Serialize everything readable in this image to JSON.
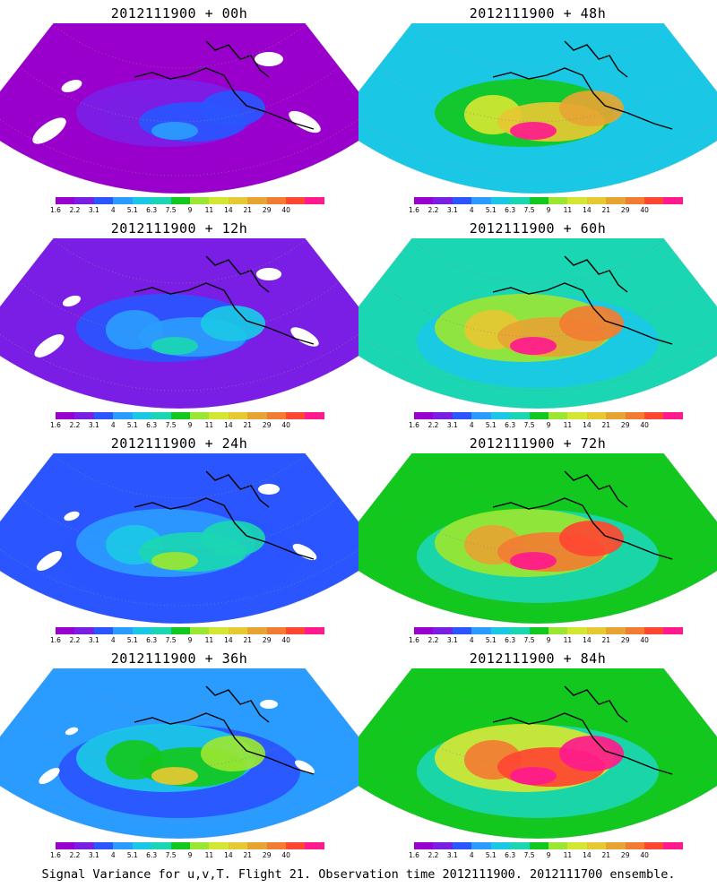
{
  "panels": [
    {
      "title": "2012111900 + 00h",
      "intensity": 0.0
    },
    {
      "title": "2012111900 + 48h",
      "intensity": 0.62
    },
    {
      "title": "2012111900 + 12h",
      "intensity": 0.12
    },
    {
      "title": "2012111900 + 60h",
      "intensity": 0.7
    },
    {
      "title": "2012111900 + 24h",
      "intensity": 0.25
    },
    {
      "title": "2012111900 + 72h",
      "intensity": 0.78
    },
    {
      "title": "2012111900 + 36h",
      "intensity": 0.38
    },
    {
      "title": "2012111900 + 84h",
      "intensity": 0.85
    }
  ],
  "colorbar": {
    "colors": [
      "#9900cc",
      "#7a1ee6",
      "#2a55ff",
      "#2b9cff",
      "#1ac8e6",
      "#1ad6b3",
      "#12c81e",
      "#9ae632",
      "#d2e632",
      "#e6c832",
      "#e6a532",
      "#f27d32",
      "#ff4632",
      "#ff1a8c"
    ],
    "labels": [
      "1.6",
      "2.2",
      "3.1",
      "4",
      "5.1",
      "6.3",
      "7.5",
      "9",
      "11",
      "14",
      "21",
      "29",
      "40"
    ]
  },
  "caption": "Signal Variance for u,v,T. Flight 21. Observation time 2012111900. 2012111700 ensemble."
}
